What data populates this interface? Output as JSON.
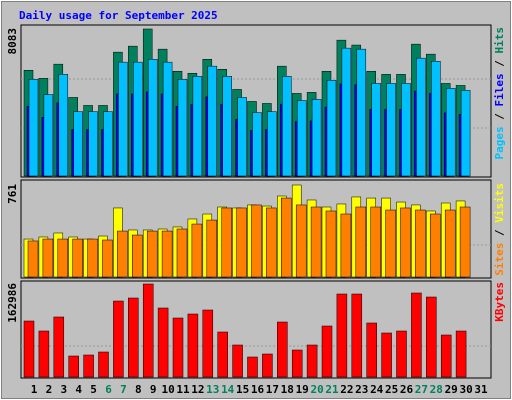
{
  "chart_data": [
    {
      "type": "bar",
      "title": "Daily usage for September 2025",
      "legend_separator": " / ",
      "ylim": [
        0,
        8083
      ],
      "yticks": [
        8083
      ],
      "series": [
        {
          "name": "Hits",
          "color": "#00805c",
          "values": [
            5815,
            5370,
            6150,
            4320,
            3880,
            3880,
            6810,
            7140,
            8083,
            6975,
            5760,
            5650,
            6420,
            5870,
            4760,
            4100,
            3990,
            6040,
            4540,
            4600,
            5760,
            7470,
            7200,
            5760,
            5590,
            5590,
            7250,
            6700,
            5090,
            4980,
            null
          ]
        },
        {
          "name": "Files",
          "color": "#0000ff",
          "values": [
            3830,
            3230,
            4020,
            2550,
            2550,
            2550,
            4510,
            4510,
            4620,
            4510,
            3830,
            3950,
            4350,
            3950,
            3110,
            2510,
            2550,
            3950,
            2990,
            3030,
            3790,
            5060,
            5020,
            3660,
            3660,
            3660,
            4670,
            4540,
            3470,
            3390,
            null
          ]
        },
        {
          "name": "Pages",
          "color": "#00c0ff",
          "values": [
            5315,
            4480,
            5590,
            3540,
            3540,
            3540,
            6260,
            6260,
            6420,
            6260,
            5315,
            5480,
            6040,
            5480,
            4320,
            3490,
            3540,
            5480,
            4150,
            4210,
            5260,
            7030,
            6975,
            5090,
            5090,
            5090,
            6480,
            6310,
            4820,
            4710,
            null
          ]
        }
      ]
    },
    {
      "type": "bar",
      "legend_separator": " / ",
      "ylim": [
        0,
        761
      ],
      "yticks": [
        761
      ],
      "series": [
        {
          "name": "Visits",
          "color": "#ffff00",
          "values": [
            314,
            331,
            364,
            331,
            314,
            339,
            571,
            389,
            389,
            397,
            414,
            480,
            521,
            579,
            571,
            596,
            587,
            670,
            761,
            637,
            579,
            604,
            662,
            653,
            653,
            620,
            596,
            546,
            612,
            629,
            null
          ]
        },
        {
          "name": "Sites",
          "color": "#ff8000",
          "values": [
            298,
            314,
            314,
            314,
            314,
            306,
            380,
            347,
            380,
            380,
            397,
            438,
            471,
            571,
            571,
            596,
            571,
            653,
            596,
            579,
            546,
            521,
            579,
            579,
            554,
            571,
            554,
            521,
            554,
            579,
            null
          ]
        }
      ]
    },
    {
      "type": "bar",
      "ylim": [
        0,
        162986
      ],
      "yticks": [
        162986
      ],
      "categories": [
        "1",
        "2",
        "3",
        "4",
        "5",
        "6",
        "7",
        "8",
        "9",
        "10",
        "11",
        "12",
        "13",
        "14",
        "15",
        "16",
        "17",
        "18",
        "19",
        "20",
        "21",
        "22",
        "23",
        "24",
        "25",
        "26",
        "27",
        "28",
        "29",
        "30",
        "31"
      ],
      "category_colors": [
        "#000000",
        "#000000",
        "#000000",
        "#000000",
        "#000000",
        "#00805c",
        "#00805c",
        "#000000",
        "#000000",
        "#000000",
        "#000000",
        "#000000",
        "#00805c",
        "#00805c",
        "#000000",
        "#000000",
        "#000000",
        "#000000",
        "#000000",
        "#00805c",
        "#00805c",
        "#000000",
        "#000000",
        "#000000",
        "#000000",
        "#000000",
        "#00805c",
        "#00805c",
        "#000000",
        "#000000",
        "#000000"
      ],
      "series": [
        {
          "name": "KBytes",
          "color": "#ff0000",
          "values": [
            98140,
            80620,
            105160,
            36800,
            38560,
            43820,
            133160,
            138450,
            162986,
            120920,
            103400,
            110410,
            117420,
            78870,
            56080,
            35050,
            40310,
            96390,
            47320,
            56080,
            89380,
            145460,
            145460,
            94640,
            77120,
            80620,
            147210,
            140200,
            73610,
            80620,
            null
          ]
        }
      ]
    }
  ]
}
